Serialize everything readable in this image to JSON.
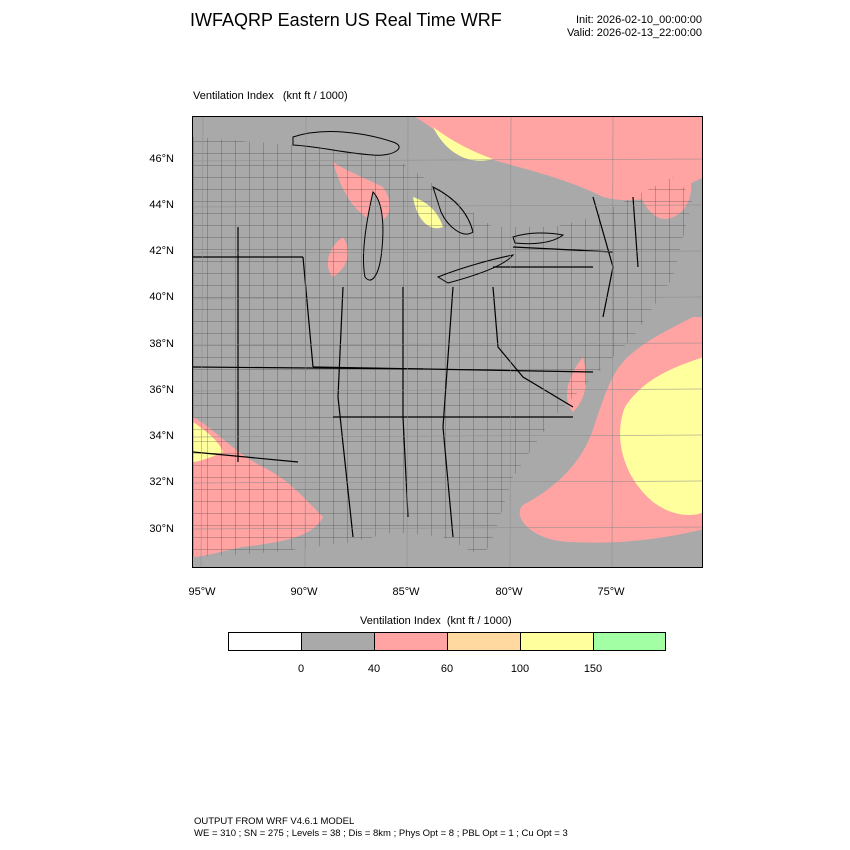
{
  "header": {
    "title": "IWFAQRP Eastern US Real Time WRF",
    "init": "Init: 2026-02-10_00:00:00",
    "valid": "Valid: 2026-02-13_22:00:00"
  },
  "map": {
    "field_title": "Ventilation Index   (knt ft / 1000)",
    "lat_labels": [
      "46°N",
      "44°N",
      "42°N",
      "40°N",
      "38°N",
      "36°N",
      "34°N",
      "32°N",
      "30°N"
    ],
    "lon_labels": [
      "95°W",
      "90°W",
      "85°W",
      "80°W",
      "75°W"
    ]
  },
  "colorbar": {
    "title": "Ventilation Index  (knt ft / 1000)",
    "colors": [
      "#ffffff",
      "#a9a9a9",
      "#ffa3a3",
      "#ffd9a0",
      "#ffff9e",
      "#a3ffa3"
    ],
    "tick_labels": [
      "0",
      "40",
      "60",
      "100",
      "150"
    ]
  },
  "footer": {
    "line1": "OUTPUT FROM WRF V4.6.1 MODEL",
    "line2": "WE = 310 ; SN = 275 ; Levels = 38 ; Dis = 8km ; Phys Opt = 8 ; PBL Opt = 1 ; Cu Opt = 3"
  }
}
